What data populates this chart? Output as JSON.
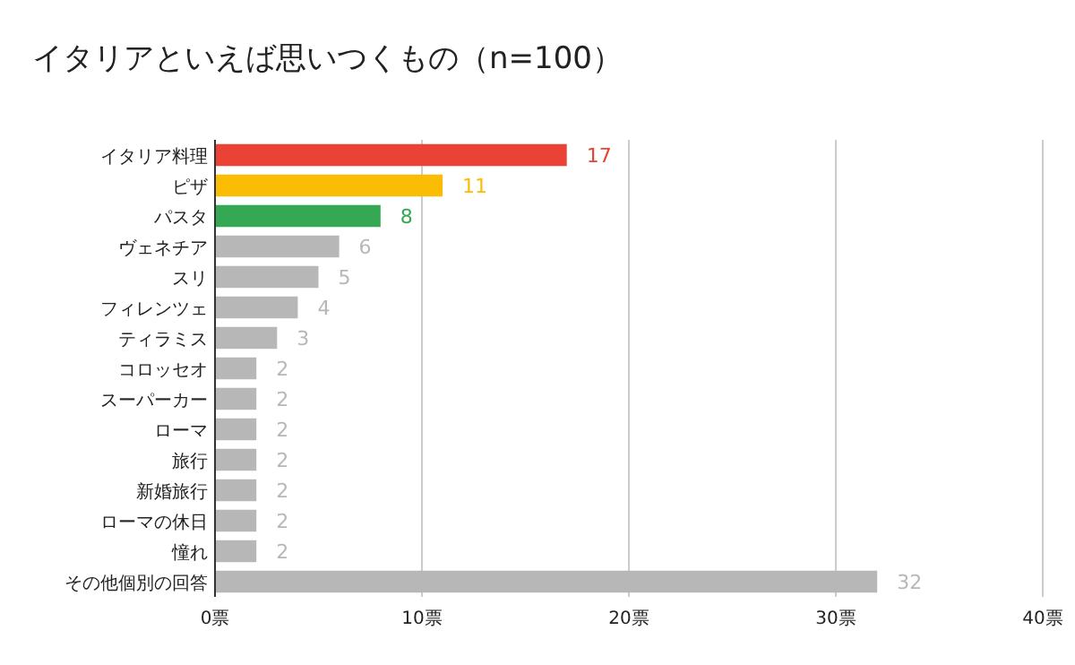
{
  "chart_data": {
    "type": "bar",
    "orientation": "horizontal",
    "title": "イタリアといえば思いつくもの（n=100）",
    "categories": [
      "イタリア料理",
      "ピザ",
      "パスタ",
      "ヴェネチア",
      "スリ",
      "フィレンツェ",
      "ティラミス",
      "コロッセオ",
      "スーパーカー",
      "ローマ",
      "旅行",
      "新婚旅行",
      "ローマの休日",
      "憧れ",
      "その他個別の回答"
    ],
    "values": [
      17,
      11,
      8,
      6,
      5,
      4,
      3,
      2,
      2,
      2,
      2,
      2,
      2,
      2,
      32
    ],
    "colors": [
      "#ea4335",
      "#fbbc04",
      "#34a853",
      "#b7b7b7",
      "#b7b7b7",
      "#b7b7b7",
      "#b7b7b7",
      "#b7b7b7",
      "#b7b7b7",
      "#b7b7b7",
      "#b7b7b7",
      "#b7b7b7",
      "#b7b7b7",
      "#b7b7b7",
      "#b7b7b7"
    ],
    "xlim": [
      0,
      40
    ],
    "xticks": [
      {
        "value": 0,
        "label": "0票"
      },
      {
        "value": 10,
        "label": "10票"
      },
      {
        "value": 20,
        "label": "20票"
      },
      {
        "value": 30,
        "label": "30票"
      },
      {
        "value": 40,
        "label": "40票"
      }
    ],
    "grid": "x",
    "data_labels": true
  }
}
